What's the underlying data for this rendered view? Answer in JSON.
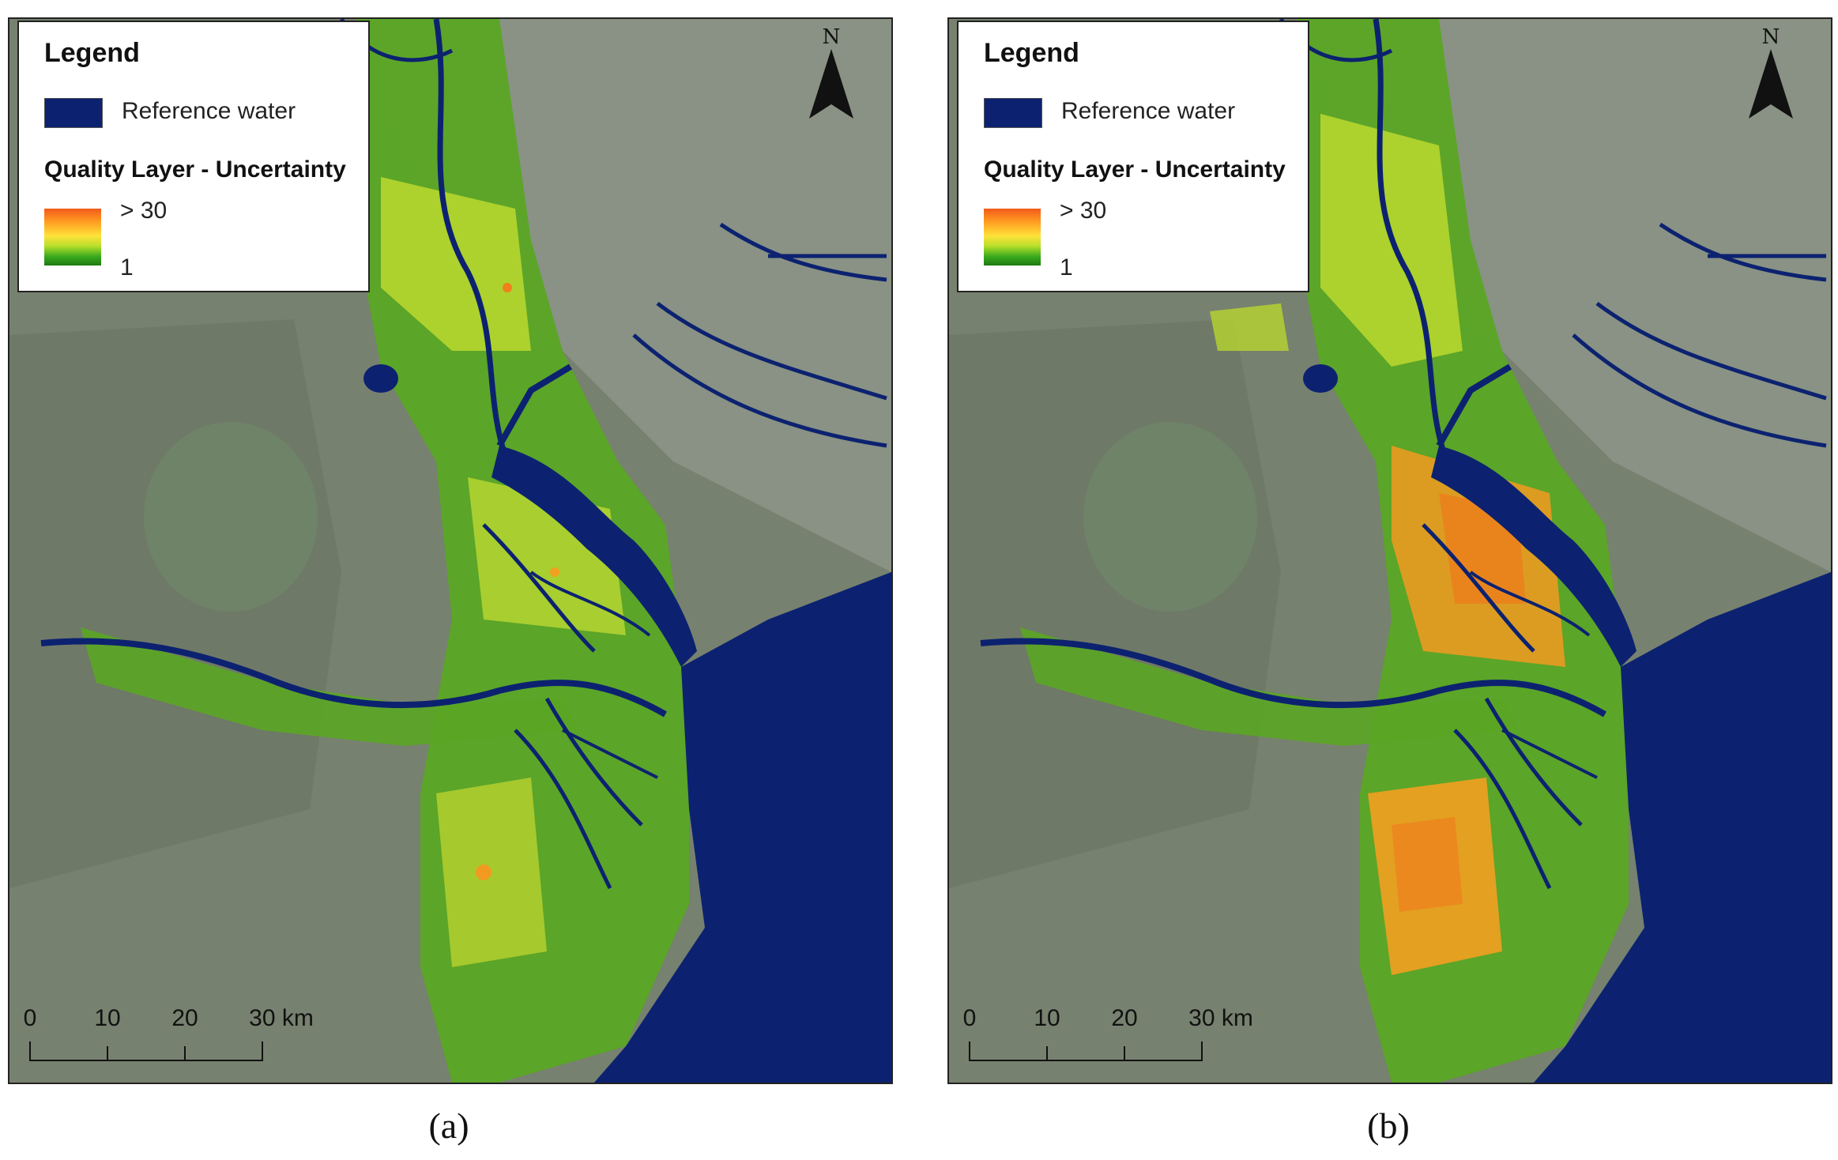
{
  "panels": [
    {
      "id": "a",
      "caption": "(a)",
      "legend": {
        "title": "Legend",
        "water_label": "Reference water",
        "quality_title": "Quality Layer - Uncertainty",
        "ramp_max": "> 30",
        "ramp_min": "1"
      },
      "north_letter": "N",
      "scale_ticks": [
        "0",
        "10",
        "20",
        "30 km"
      ]
    },
    {
      "id": "b",
      "caption": "(b)",
      "legend": {
        "title": "Legend",
        "water_label": "Reference water",
        "quality_title": "Quality Layer - Uncertainty",
        "ramp_max": "> 30",
        "ramp_min": "1"
      },
      "north_letter": "N",
      "scale_ticks": [
        "0",
        "10",
        "20",
        "30 km"
      ]
    }
  ],
  "colors": {
    "reference_water": "#0c2270",
    "ramp_high": "#f25a1c",
    "ramp_mid": "#ffe23a",
    "ramp_low": "#1e7a12",
    "land": "#7a8474"
  }
}
